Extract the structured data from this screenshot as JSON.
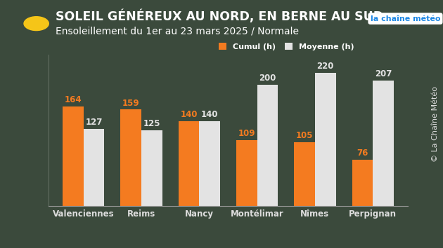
{
  "chart_data": {
    "type": "bar",
    "title": "SOLEIL GÉNÉREUX AU NORD, EN BERNE AU SUD",
    "subtitle": "Ensoleillement du 1er au 23 mars 2025 / Normale",
    "annotations": [
      "la chaîne météo",
      "© La Chaîne Météo"
    ],
    "categories": [
      "Valenciennes",
      "Reims",
      "Nancy",
      "Montélimar",
      "Nîmes",
      "Perpignan"
    ],
    "series": [
      {
        "name": "Cumul (h)",
        "color": "#f47b20",
        "values": [
          164,
          159,
          140,
          109,
          105,
          76
        ]
      },
      {
        "name": "Moyenne (h)",
        "color": "#e3e3e3",
        "values": [
          127,
          125,
          140,
          200,
          220,
          207
        ]
      }
    ],
    "ylim": [
      0,
      250
    ],
    "yticks": [],
    "data_labels": true,
    "tick_labels": "x",
    "legend": "upper right",
    "grid": false
  }
}
